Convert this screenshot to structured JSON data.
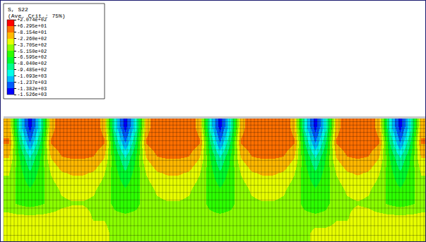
{
  "chart_data": {
    "type": "heatmap",
    "title": "S, S22",
    "subtitle": "(Ave. Crit.: 75%)",
    "tick_labels": false,
    "colors": [
      "#0000ff",
      "#005dff",
      "#00b9ff",
      "#00ffe8",
      "#00ff8b",
      "#00ff2e",
      "#2eff00",
      "#8bff00",
      "#e8ff00",
      "#ffb900",
      "#ff7000",
      "#ff0000"
    ],
    "colorbar": {
      "range": [
        -1526,
        207.4
      ],
      "ticks": [
        {
          "value": 207.4,
          "label": "+2.074e+02"
        },
        {
          "value": 62.95,
          "label": "+6.295e+01"
        },
        {
          "value": -81.54,
          "label": "-8.154e+01"
        },
        {
          "value": -226.0,
          "label": "-2.260e+02"
        },
        {
          "value": -370.5,
          "label": "-3.705e+02"
        },
        {
          "value": -515.0,
          "label": "-5.150e+02"
        },
        {
          "value": -659.5,
          "label": "-6.595e+02"
        },
        {
          "value": -804.0,
          "label": "-8.040e+02"
        },
        {
          "value": -948.5,
          "label": "-9.485e+02"
        },
        {
          "value": -1093,
          "label": "-1.093e+03"
        },
        {
          "value": -1237,
          "label": "-1.237e+03"
        },
        {
          "value": -1382,
          "label": "-1.382e+03"
        },
        {
          "value": -1526,
          "label": "-1.526e+03"
        }
      ]
    },
    "cells": [
      [
        -150,
        -1000,
        -1450,
        -1000,
        -150,
        40,
        60,
        60,
        40,
        -150,
        -1000,
        -1450,
        -1000,
        -150,
        40,
        60,
        60,
        40,
        -150,
        -1000,
        -1450,
        -1000,
        -150,
        40,
        60,
        60,
        40,
        -150,
        -1000,
        -1450,
        -1000,
        -150,
        40,
        60,
        40,
        -150,
        -1000,
        -1450,
        -1000,
        -150
      ],
      [
        -60,
        -800,
        -1250,
        -800,
        -60,
        20,
        30,
        30,
        20,
        -60,
        -800,
        -1250,
        -800,
        -60,
        20,
        30,
        30,
        20,
        -60,
        -800,
        -1250,
        -800,
        -60,
        20,
        30,
        30,
        20,
        -60,
        -800,
        -1250,
        -800,
        -60,
        20,
        30,
        20,
        -60,
        -800,
        -1250,
        -800,
        -60
      ],
      [
        -220,
        -650,
        -950,
        -650,
        -220,
        -90,
        -70,
        -70,
        -90,
        -220,
        -650,
        -950,
        -650,
        -220,
        -90,
        -70,
        -70,
        -90,
        -220,
        -650,
        -950,
        -650,
        -220,
        -90,
        -70,
        -70,
        -90,
        -220,
        -650,
        -950,
        -650,
        -220,
        -90,
        -70,
        -90,
        -220,
        -650,
        -950,
        -650,
        -220
      ],
      [
        -360,
        -600,
        -780,
        -600,
        -360,
        -240,
        -210,
        -210,
        -240,
        -360,
        -600,
        -780,
        -600,
        -360,
        -240,
        -210,
        -210,
        -240,
        -360,
        -600,
        -780,
        -600,
        -360,
        -240,
        -210,
        -210,
        -240,
        -360,
        -600,
        -780,
        -600,
        -360,
        -240,
        -210,
        -240,
        -360,
        -600,
        -780,
        -600,
        -360
      ],
      [
        -430,
        -560,
        -660,
        -560,
        -430,
        -340,
        -310,
        -310,
        -340,
        -430,
        -560,
        -660,
        -560,
        -430,
        -340,
        -310,
        -310,
        -340,
        -430,
        -560,
        -660,
        -560,
        -430,
        -340,
        -310,
        -310,
        -340,
        -430,
        -560,
        -660,
        -560,
        -430,
        -340,
        -310,
        -340,
        -430,
        -560,
        -660,
        -560,
        -430
      ],
      [
        -470,
        -540,
        -580,
        -540,
        -470,
        -400,
        -380,
        -380,
        -400,
        -470,
        -540,
        -580,
        -540,
        -470,
        -400,
        -380,
        -380,
        -400,
        -470,
        -540,
        -580,
        -540,
        -470,
        -400,
        -380,
        -380,
        -400,
        -470,
        -540,
        -580,
        -540,
        -470,
        -400,
        -380,
        -400,
        -470,
        -540,
        -580,
        -540,
        -470
      ],
      [
        -300,
        -300,
        -300,
        -300,
        -300,
        -300,
        -300,
        -300,
        -380,
        -380,
        -480,
        -480,
        -480,
        -480,
        -480,
        -480,
        -480,
        -480,
        -480,
        -480,
        -480,
        -480,
        -480,
        -480,
        -480,
        -480,
        -480,
        -480,
        -480,
        -480,
        -480,
        -380,
        -380,
        -300,
        -300,
        -300,
        -300,
        -300,
        -300,
        -300
      ],
      [
        -280,
        -280,
        -280,
        -280,
        -280,
        -280,
        -280,
        -280,
        -280,
        -280,
        -450,
        -450,
        -450,
        -450,
        -450,
        -450,
        -450,
        -450,
        -450,
        -450,
        -450,
        -450,
        -450,
        -450,
        -450,
        -450,
        -450,
        -450,
        -450,
        -280,
        -280,
        -280,
        -280,
        -280,
        -280,
        -280,
        -280,
        -280,
        -280,
        -280
      ]
    ]
  }
}
